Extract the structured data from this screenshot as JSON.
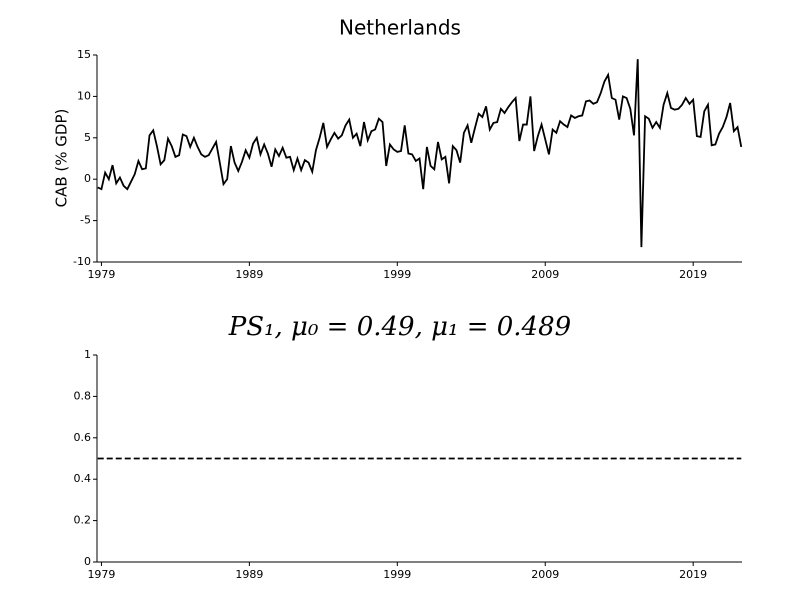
{
  "chart_data": [
    {
      "type": "line",
      "title": "Netherlands",
      "ylabel": "CAB (% GDP)",
      "x": [
        1978.75,
        1979,
        1979.25,
        1979.5,
        1979.75,
        1980,
        1980.25,
        1980.5,
        1980.75,
        1981,
        1981.25,
        1981.5,
        1981.75,
        1982,
        1982.25,
        1982.5,
        1982.75,
        1983,
        1983.25,
        1983.5,
        1983.75,
        1984,
        1984.25,
        1984.5,
        1984.75,
        1985,
        1985.25,
        1985.5,
        1985.75,
        1986,
        1986.25,
        1986.5,
        1986.75,
        1987,
        1987.25,
        1987.5,
        1987.75,
        1988,
        1988.25,
        1988.5,
        1988.75,
        1989,
        1989.25,
        1989.5,
        1989.75,
        1990,
        1990.25,
        1990.5,
        1990.75,
        1991,
        1991.25,
        1991.5,
        1991.75,
        1992,
        1992.25,
        1992.5,
        1992.75,
        1993,
        1993.25,
        1993.5,
        1993.75,
        1994,
        1994.25,
        1994.5,
        1994.75,
        1995,
        1995.25,
        1995.5,
        1995.75,
        1996,
        1996.25,
        1996.5,
        1996.75,
        1997,
        1997.25,
        1997.5,
        1997.75,
        1998,
        1998.25,
        1998.5,
        1998.75,
        1999,
        1999.25,
        1999.5,
        1999.75,
        2000,
        2000.25,
        2000.5,
        2000.75,
        2001,
        2001.25,
        2001.5,
        2001.75,
        2002,
        2002.25,
        2002.5,
        2002.75,
        2003,
        2003.25,
        2003.5,
        2003.75,
        2004,
        2004.25,
        2004.5,
        2004.75,
        2005,
        2005.25,
        2005.5,
        2005.75,
        2006,
        2006.25,
        2006.5,
        2006.75,
        2007,
        2007.25,
        2007.5,
        2007.75,
        2008,
        2008.25,
        2008.5,
        2008.75,
        2009,
        2009.25,
        2009.5,
        2009.75,
        2010,
        2010.25,
        2010.5,
        2010.75,
        2011,
        2011.25,
        2011.5,
        2011.75,
        2012,
        2012.25,
        2012.5,
        2012.75,
        2013,
        2013.25,
        2013.5,
        2013.75,
        2014,
        2014.25,
        2014.5,
        2014.75,
        2015,
        2015.25,
        2015.5,
        2015.75,
        2016,
        2016.25,
        2016.5,
        2016.75,
        2017,
        2017.25,
        2017.5,
        2017.75,
        2018,
        2018.25,
        2018.5,
        2018.75,
        2019,
        2019.25,
        2019.5,
        2019.75,
        2020,
        2020.25,
        2020.5,
        2020.75,
        2021,
        2021.25,
        2021.5,
        2021.75,
        2022,
        2022.25
      ],
      "series": [
        {
          "name": "CAB",
          "color": "#000000",
          "values": [
            -1.0,
            -1.2,
            0.8,
            0.0,
            1.7,
            -0.5,
            0.2,
            -0.8,
            -1.2,
            -0.3,
            0.6,
            2.2,
            1.2,
            1.3,
            5.3,
            5.9,
            4.0,
            1.8,
            2.3,
            4.9,
            4.0,
            2.7,
            2.9,
            5.4,
            5.2,
            3.9,
            5.0,
            3.9,
            3.0,
            2.7,
            2.9,
            3.7,
            4.5,
            2.0,
            -0.6,
            0.0,
            4.0,
            2.0,
            1.0,
            2.1,
            3.5,
            2.6,
            4.3,
            5.0,
            3.0,
            4.2,
            3.1,
            1.5,
            3.6,
            2.8,
            3.8,
            2.6,
            2.7,
            1.1,
            2.5,
            1.1,
            2.3,
            2.0,
            0.9,
            3.5,
            5.0,
            6.8,
            3.9,
            4.8,
            5.6,
            4.9,
            5.3,
            6.5,
            7.2,
            5.0,
            5.5,
            4.0,
            6.9,
            4.7,
            5.8,
            6.0,
            7.3,
            6.9,
            1.6,
            4.2,
            3.6,
            3.3,
            3.4,
            6.5,
            3.1,
            3.0,
            2.2,
            2.5,
            -1.2,
            3.9,
            1.6,
            1.2,
            4.5,
            2.4,
            2.7,
            -0.5,
            4.0,
            3.5,
            2.0,
            5.6,
            6.5,
            4.4,
            6.2,
            7.9,
            7.5,
            8.8,
            6.0,
            6.8,
            6.9,
            8.5,
            8.0,
            8.7,
            9.3,
            9.8,
            4.6,
            6.6,
            6.6,
            10.0,
            3.4,
            5.2,
            6.6,
            4.8,
            3.0,
            6.0,
            5.6,
            7.0,
            6.6,
            6.3,
            7.7,
            7.4,
            7.6,
            7.7,
            9.4,
            9.5,
            9.1,
            9.3,
            10.4,
            11.8,
            12.6,
            9.8,
            9.6,
            7.2,
            10.0,
            9.8,
            8.5,
            5.3,
            14.5,
            -8.2,
            7.6,
            7.3,
            6.2,
            6.9,
            6.2,
            9.0,
            10.4,
            8.6,
            8.4,
            8.5,
            9.0,
            9.8,
            9.1,
            9.6,
            5.2,
            5.1,
            8.2,
            9.0,
            4.1,
            4.2,
            5.5,
            6.3,
            7.5,
            9.2,
            5.8,
            6.3,
            3.9
          ]
        }
      ],
      "xlim": [
        1978.7,
        2022.3
      ],
      "xticks": [
        1979,
        1989,
        1999,
        2009,
        2019
      ],
      "ylim": [
        -10,
        15
      ],
      "yticks": [
        -10,
        -5,
        0,
        5,
        10,
        15
      ]
    },
    {
      "type": "line",
      "title": "PS₁, μ₀ = 0.49, μ₁ = 0.489",
      "x": [
        1978.75,
        2022.25
      ],
      "series": [
        {
          "name": "PS1",
          "color": "#000000",
          "dash": true,
          "values": [
            0.5,
            0.5
          ]
        }
      ],
      "xlim": [
        1978.7,
        2022.3
      ],
      "xticks": [
        1979,
        1989,
        1999,
        2009,
        2019
      ],
      "ylim": [
        0,
        1
      ],
      "yticks": [
        0,
        0.2,
        0.4,
        0.6,
        0.8,
        1
      ]
    }
  ]
}
